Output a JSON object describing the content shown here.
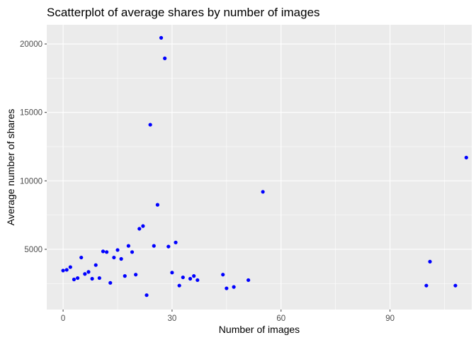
{
  "chart_data": {
    "type": "scatter",
    "title": "Scatterplot of average shares by number of images",
    "xlabel": "Number of images",
    "ylabel": "Average number of shares",
    "xlim": [
      -4.5,
      112.5
    ],
    "ylim": [
      600,
      21400
    ],
    "x_ticks": [
      0,
      30,
      60,
      90
    ],
    "x_minor": [
      15,
      45,
      75,
      105
    ],
    "y_ticks": [
      5000,
      10000,
      15000,
      20000
    ],
    "y_minor": [
      2500,
      7500,
      12500,
      17500
    ],
    "grid": true,
    "panel_color": "#ebebeb",
    "grid_color": "#ffffff",
    "point_color": "#0000ff",
    "points": [
      {
        "x": 0,
        "y": 3450
      },
      {
        "x": 1,
        "y": 3500
      },
      {
        "x": 2,
        "y": 3700
      },
      {
        "x": 3,
        "y": 2800
      },
      {
        "x": 4,
        "y": 2900
      },
      {
        "x": 5,
        "y": 4400
      },
      {
        "x": 6,
        "y": 3200
      },
      {
        "x": 7,
        "y": 3350
      },
      {
        "x": 8,
        "y": 2850
      },
      {
        "x": 9,
        "y": 3850
      },
      {
        "x": 10,
        "y": 2900
      },
      {
        "x": 11,
        "y": 4850
      },
      {
        "x": 12,
        "y": 4800
      },
      {
        "x": 13,
        "y": 2550
      },
      {
        "x": 14,
        "y": 4400
      },
      {
        "x": 15,
        "y": 4950
      },
      {
        "x": 16,
        "y": 4300
      },
      {
        "x": 17,
        "y": 3050
      },
      {
        "x": 18,
        "y": 5250
      },
      {
        "x": 19,
        "y": 4800
      },
      {
        "x": 20,
        "y": 3150
      },
      {
        "x": 21,
        "y": 6500
      },
      {
        "x": 22,
        "y": 6700
      },
      {
        "x": 23,
        "y": 1650
      },
      {
        "x": 24,
        "y": 14100
      },
      {
        "x": 25,
        "y": 5250
      },
      {
        "x": 26,
        "y": 8250
      },
      {
        "x": 27,
        "y": 20450
      },
      {
        "x": 28,
        "y": 18950
      },
      {
        "x": 29,
        "y": 5200
      },
      {
        "x": 30,
        "y": 3300
      },
      {
        "x": 31,
        "y": 5500
      },
      {
        "x": 32,
        "y": 2350
      },
      {
        "x": 33,
        "y": 2950
      },
      {
        "x": 35,
        "y": 2850
      },
      {
        "x": 36,
        "y": 3050
      },
      {
        "x": 37,
        "y": 2750
      },
      {
        "x": 44,
        "y": 3150
      },
      {
        "x": 45,
        "y": 2150
      },
      {
        "x": 47,
        "y": 2250
      },
      {
        "x": 51,
        "y": 2750
      },
      {
        "x": 55,
        "y": 9200
      },
      {
        "x": 100,
        "y": 2350
      },
      {
        "x": 101,
        "y": 4100
      },
      {
        "x": 108,
        "y": 2350
      },
      {
        "x": 111,
        "y": 11700
      }
    ]
  }
}
